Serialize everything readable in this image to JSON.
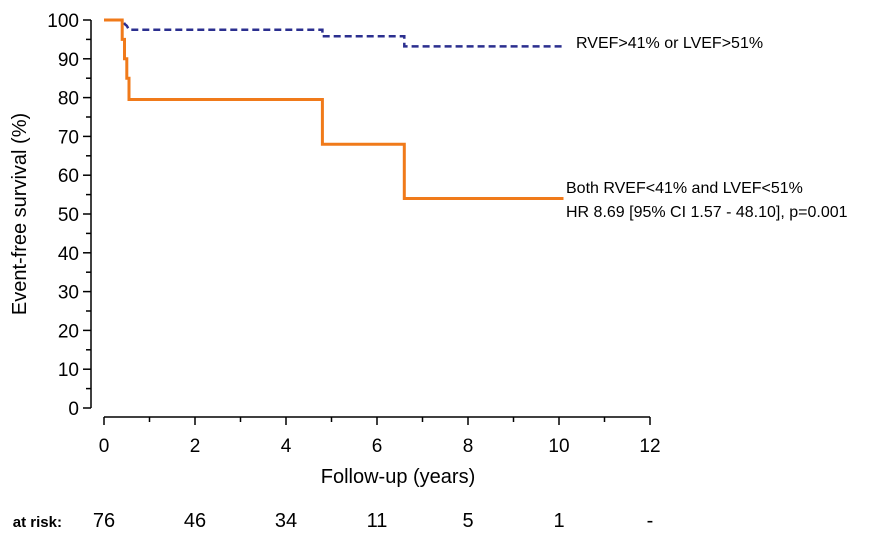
{
  "chart_data": {
    "type": "line",
    "xlabel": "Follow-up (years)",
    "ylabel": "Event-free survival (%)",
    "xlim": [
      0,
      12
    ],
    "ylim": [
      0,
      100
    ],
    "x_ticks": [
      "0",
      "2",
      "4",
      "6",
      "8",
      "10",
      "12"
    ],
    "y_ticks": [
      "0",
      "10",
      "20",
      "30",
      "40",
      "50",
      "60",
      "70",
      "80",
      "90",
      "100"
    ],
    "grid": false,
    "series": [
      {
        "name": "RVEF>41% or LVEF>51%",
        "color": "#2b2f8f",
        "style": "dashed",
        "steps": [
          [
            0,
            100
          ],
          [
            0.42,
            100
          ],
          [
            0.45,
            99
          ],
          [
            0.5,
            98.5
          ],
          [
            0.55,
            97.5
          ],
          [
            4.8,
            97.5
          ],
          [
            4.8,
            95.8
          ],
          [
            6.6,
            95.8
          ],
          [
            6.6,
            93.2
          ],
          [
            10.1,
            93.2
          ]
        ]
      },
      {
        "name": "Both RVEF<41% and LVEF<51%",
        "color": "#f07a1a",
        "style": "solid",
        "steps": [
          [
            0,
            100
          ],
          [
            0.4,
            100
          ],
          [
            0.4,
            95
          ],
          [
            0.45,
            95
          ],
          [
            0.45,
            90
          ],
          [
            0.5,
            90
          ],
          [
            0.5,
            85
          ],
          [
            0.55,
            85
          ],
          [
            0.55,
            79.5
          ],
          [
            4.8,
            79.5
          ],
          [
            4.8,
            68
          ],
          [
            6.6,
            68
          ],
          [
            6.6,
            54
          ],
          [
            10.1,
            54
          ]
        ]
      }
    ],
    "annotations": {
      "top_line": "RVEF>41% or LVEF>51%",
      "bottom_line1": "Both RVEF<41% and LVEF<51%",
      "bottom_line2": "HR 8.69 [95% CI 1.57 - 48.10], p=0.001"
    },
    "at_risk": {
      "label": "at risk:",
      "values": [
        "76",
        "46",
        "34",
        "11",
        "5",
        "1",
        "-"
      ]
    }
  }
}
